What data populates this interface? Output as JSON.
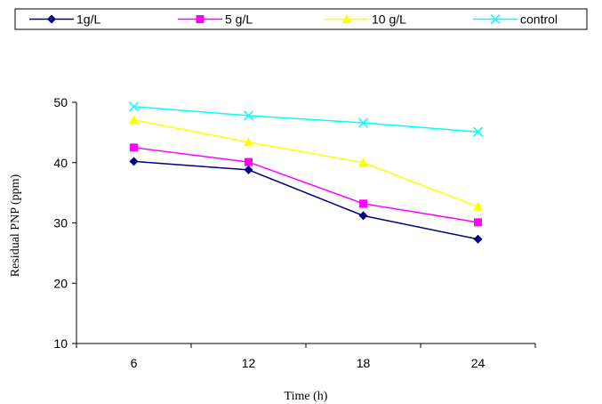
{
  "chart_data": {
    "type": "line",
    "title": "",
    "xlabel": "Time (h)",
    "ylabel": "Residual PNP (ppm)",
    "categories": [
      "6",
      "12",
      "18",
      "24"
    ],
    "ylim": [
      10,
      50
    ],
    "yticks": [
      10,
      20,
      30,
      40,
      50
    ],
    "grid": false,
    "legend_position": "top",
    "series": [
      {
        "name": "1g/L",
        "values": [
          40.2,
          38.8,
          31.2,
          27.3
        ],
        "color": "#000080",
        "marker": "diamond"
      },
      {
        "name": "5 g/L",
        "values": [
          42.5,
          40.1,
          33.2,
          30.1
        ],
        "color": "#FF00FF",
        "marker": "square"
      },
      {
        "name": "10 g/L",
        "values": [
          47.1,
          43.4,
          40.0,
          32.7
        ],
        "color": "#FFFF00",
        "marker": "triangle"
      },
      {
        "name": "control",
        "values": [
          49.3,
          47.8,
          46.6,
          45.1
        ],
        "color": "#00FFFF",
        "marker": "x"
      }
    ]
  }
}
